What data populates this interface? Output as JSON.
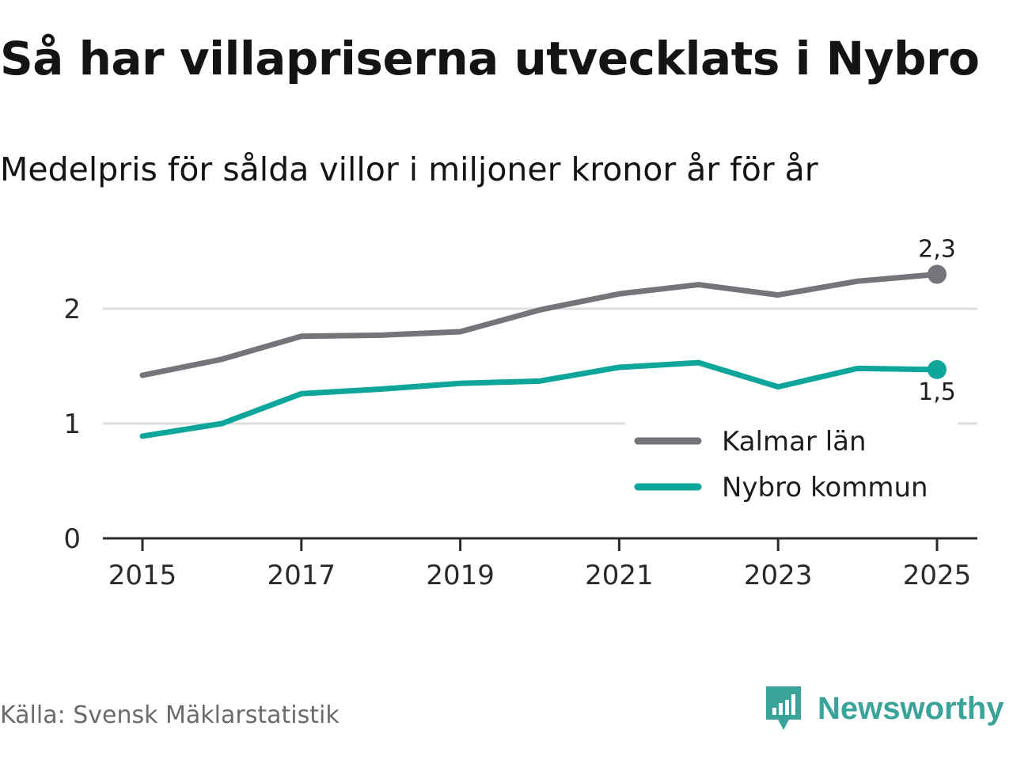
{
  "header": {
    "title": "Så har villapriserna utvecklats i Nybro",
    "subtitle": "Medelpris för sålda villor i miljoner kronor år för år"
  },
  "footer": {
    "source": "Källa: Svensk Mäklarstatistik",
    "brand": "Newsworthy"
  },
  "colors": {
    "kalmar": "#75747a",
    "nybro": "#0ea69a",
    "grid": "#dddddd",
    "axis": "#2b2b2b",
    "brand": "#3aa39a"
  },
  "icons": {
    "logo": "newsworthy-logo-icon"
  },
  "chart_data": {
    "type": "line",
    "title": "Så har villapriserna utvecklats i Nybro",
    "subtitle": "Medelpris för sålda villor i miljoner kronor år för år",
    "xlabel": "",
    "ylabel": "",
    "x": [
      2015,
      2016,
      2017,
      2018,
      2019,
      2020,
      2021,
      2022,
      2023,
      2024,
      2025
    ],
    "xticks": [
      "2015",
      "2017",
      "2019",
      "2021",
      "2023",
      "2025"
    ],
    "yticks": [
      "0",
      "1",
      "2"
    ],
    "ylim": [
      0,
      2.5
    ],
    "xlim": [
      2014.5,
      2025.5
    ],
    "grid": true,
    "legend_position": "bottom-right",
    "series": [
      {
        "name": "Kalmar län",
        "color": "#75747a",
        "values": [
          1.42,
          1.56,
          1.76,
          1.77,
          1.8,
          1.99,
          2.13,
          2.21,
          2.12,
          2.24,
          2.3
        ],
        "end_label": "2,3"
      },
      {
        "name": "Nybro kommun",
        "color": "#0ea69a",
        "values": [
          0.89,
          1.0,
          1.26,
          1.3,
          1.35,
          1.37,
          1.49,
          1.53,
          1.32,
          1.48,
          1.47
        ],
        "end_label": "1,5"
      }
    ]
  }
}
